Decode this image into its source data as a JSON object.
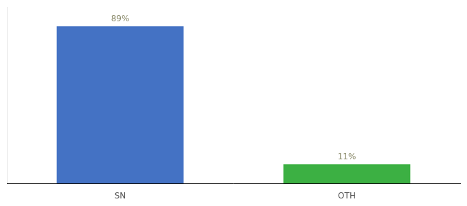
{
  "chart_data": {
    "type": "bar",
    "categories": [
      "SN",
      "OTH"
    ],
    "values": [
      89,
      11
    ],
    "value_labels": [
      "89%",
      "11%"
    ],
    "colors": [
      "#4472c4",
      "#3cb043"
    ],
    "ylim": [
      0,
      100
    ],
    "data_labels": true,
    "tick_labels": "x",
    "grid": false
  }
}
